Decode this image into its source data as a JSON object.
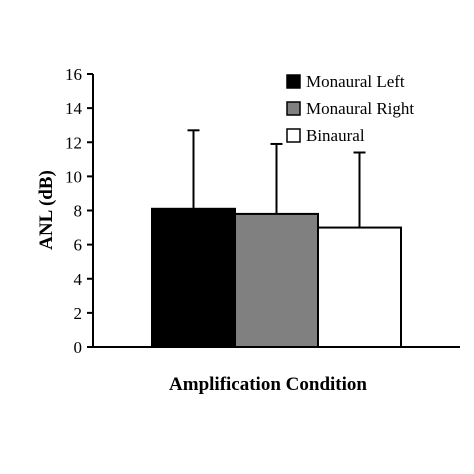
{
  "chart_data": {
    "type": "bar",
    "title": "",
    "xlabel": "Amplification Condition",
    "ylabel": "ANL (dB)",
    "ylim": [
      0,
      16
    ],
    "yticks": [
      0,
      2,
      4,
      6,
      8,
      10,
      12,
      14,
      16
    ],
    "grid": false,
    "legend_position": "top-right",
    "series": [
      {
        "name": "Monaural Left",
        "value": 8.1,
        "error": 4.6,
        "color": "#000000"
      },
      {
        "name": "Monaural Right",
        "value": 7.8,
        "error": 4.1,
        "color": "#808080"
      },
      {
        "name": "Binaural",
        "value": 7.0,
        "error": 4.4,
        "color": "#ffffff"
      }
    ]
  }
}
